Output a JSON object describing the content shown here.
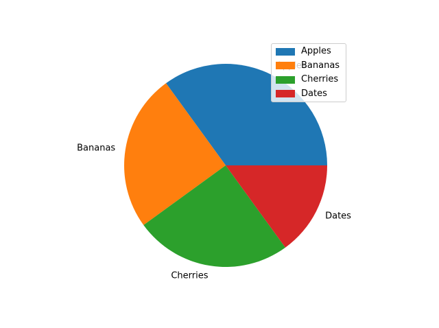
{
  "figure": {
    "background": "#ffffff"
  },
  "chart_data": {
    "type": "pie",
    "categories": [
      "Apples",
      "Bananas",
      "Cherries",
      "Dates"
    ],
    "values": [
      35,
      25,
      25,
      15
    ],
    "colors": [
      "#1f77b4",
      "#ff7f0e",
      "#2ca02c",
      "#d62728"
    ],
    "startangle": 0,
    "counterclock": true,
    "labeldistance": 1.1,
    "label_color": "#000000",
    "legend": {
      "position": "upper right",
      "background": "rgba(255,255,255,0.8)",
      "border_color": "#cccccc",
      "entries": [
        {
          "label": "Apples",
          "color": "#1f77b4"
        },
        {
          "label": "Bananas",
          "color": "#ff7f0e"
        },
        {
          "label": "Cherries",
          "color": "#2ca02c"
        },
        {
          "label": "Dates",
          "color": "#d62728"
        }
      ]
    }
  }
}
